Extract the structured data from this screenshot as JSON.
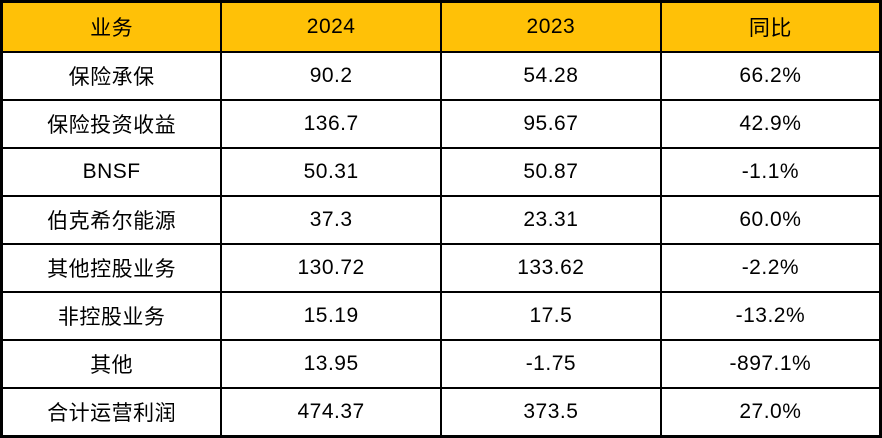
{
  "styles": {
    "header_bg": "#FFC107",
    "header_text_color": "#000000",
    "border_color": "#000000",
    "cell_bg": "#FFFFFF",
    "cell_text_color": "#000000"
  },
  "chart_data": {
    "type": "table",
    "title": "",
    "columns": [
      "业务",
      "2024",
      "2023",
      "同比"
    ],
    "rows": [
      [
        "保险承保",
        "90.2",
        "54.28",
        "66.2%"
      ],
      [
        "保险投资收益",
        "136.7",
        "95.67",
        "42.9%"
      ],
      [
        "BNSF",
        "50.31",
        "50.87",
        "-1.1%"
      ],
      [
        "伯克希尔能源",
        "37.3",
        "23.31",
        "60.0%"
      ],
      [
        "其他控股业务",
        "130.72",
        "133.62",
        "-2.2%"
      ],
      [
        "非控股业务",
        "15.19",
        "17.5",
        "-13.2%"
      ],
      [
        "其他",
        "13.95",
        "-1.75",
        "-897.1%"
      ],
      [
        "合计运营利润",
        "474.37",
        "373.5",
        "27.0%"
      ]
    ]
  }
}
